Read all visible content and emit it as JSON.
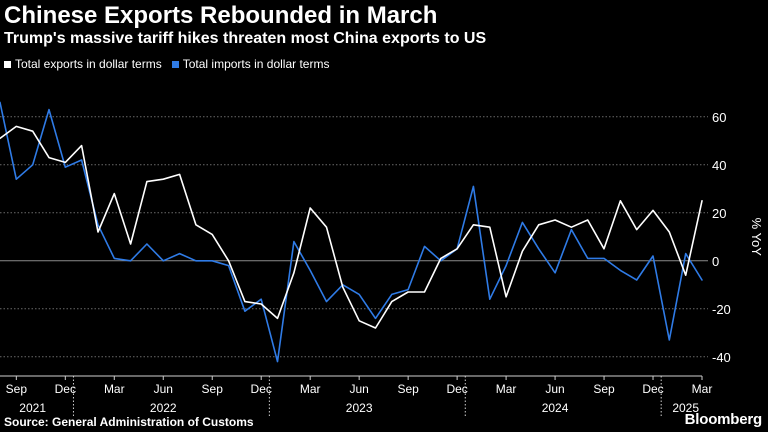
{
  "title": "Chinese Exports Rebounded in March",
  "subtitle": "Trump's massive tariff hikes threaten most China exports to US",
  "source": "Source: General Administration of Customs",
  "brand": "Bloomberg",
  "colors": {
    "background": "#000000",
    "exports": "#ffffff",
    "imports": "#2f7be6",
    "grid": "#6a6a6a"
  },
  "chart_data": {
    "type": "line",
    "title": "Chinese Exports Rebounded in March",
    "ylabel": "% YoY",
    "ylim": [
      -48,
      72
    ],
    "yticks": [
      60,
      40,
      20,
      0,
      -20,
      -40
    ],
    "xlim": [
      "2021-08",
      "2025-03"
    ],
    "x": [
      "2021-08",
      "2021-09",
      "2021-10",
      "2021-11",
      "2021-12",
      "2022-01",
      "2022-02",
      "2022-03",
      "2022-04",
      "2022-05",
      "2022-06",
      "2022-07",
      "2022-08",
      "2022-09",
      "2022-10",
      "2022-11",
      "2022-12",
      "2023-01",
      "2023-02",
      "2023-03",
      "2023-04",
      "2023-05",
      "2023-06",
      "2023-07",
      "2023-08",
      "2023-09",
      "2023-10",
      "2023-11",
      "2023-12",
      "2024-01",
      "2024-02",
      "2024-03",
      "2024-04",
      "2024-05",
      "2024-06",
      "2024-07",
      "2024-08",
      "2024-09",
      "2024-10",
      "2024-11",
      "2024-12",
      "2025-01",
      "2025-02",
      "2025-03"
    ],
    "x_tick_labels": [
      {
        "month": "2021-09",
        "label": "Sep"
      },
      {
        "month": "2021-12",
        "label": "Dec"
      },
      {
        "month": "2022-03",
        "label": "Mar"
      },
      {
        "month": "2022-06",
        "label": "Jun"
      },
      {
        "month": "2022-09",
        "label": "Sep"
      },
      {
        "month": "2022-12",
        "label": "Dec"
      },
      {
        "month": "2023-03",
        "label": "Mar"
      },
      {
        "month": "2023-06",
        "label": "Jun"
      },
      {
        "month": "2023-09",
        "label": "Sep"
      },
      {
        "month": "2023-12",
        "label": "Dec"
      },
      {
        "month": "2024-03",
        "label": "Mar"
      },
      {
        "month": "2024-06",
        "label": "Jun"
      },
      {
        "month": "2024-09",
        "label": "Sep"
      },
      {
        "month": "2024-12",
        "label": "Dec"
      },
      {
        "month": "2025-03",
        "label": "Mar"
      }
    ],
    "year_labels": [
      {
        "year": "2021",
        "center_month": "2021-10"
      },
      {
        "year": "2022",
        "center_month": "2022-06"
      },
      {
        "year": "2023",
        "center_month": "2023-06"
      },
      {
        "year": "2024",
        "center_month": "2024-06"
      },
      {
        "year": "2025",
        "center_month": "2025-02"
      }
    ],
    "year_dividers": [
      "2021-12",
      "2022-12",
      "2023-12",
      "2024-12"
    ],
    "series": [
      {
        "name": "Total exports in dollar terms",
        "color": "#ffffff",
        "values": [
          51,
          56,
          54,
          43,
          41,
          48,
          12,
          28,
          7,
          33,
          34,
          36,
          15,
          11,
          0,
          -17,
          -18,
          -24,
          -5,
          22,
          14,
          -11,
          -25,
          -28,
          -17,
          -13,
          -13,
          1,
          5,
          15,
          14,
          -15,
          4,
          15,
          17,
          14,
          17,
          5,
          25,
          13,
          21,
          12,
          -6,
          25
        ]
      },
      {
        "name": "Total imports in dollar terms",
        "color": "#2f7be6",
        "values": [
          66,
          34,
          40,
          63,
          39,
          42,
          15,
          1,
          0,
          7,
          0,
          3,
          0,
          0,
          -2,
          -21,
          -16,
          -42,
          8,
          -4,
          -17,
          -10,
          -14,
          -24,
          -14,
          -12,
          6,
          0,
          5,
          31,
          -16,
          -2,
          16,
          5,
          -5,
          13,
          1,
          1,
          -4,
          -8,
          2,
          -33,
          3,
          -8
        ]
      }
    ]
  }
}
